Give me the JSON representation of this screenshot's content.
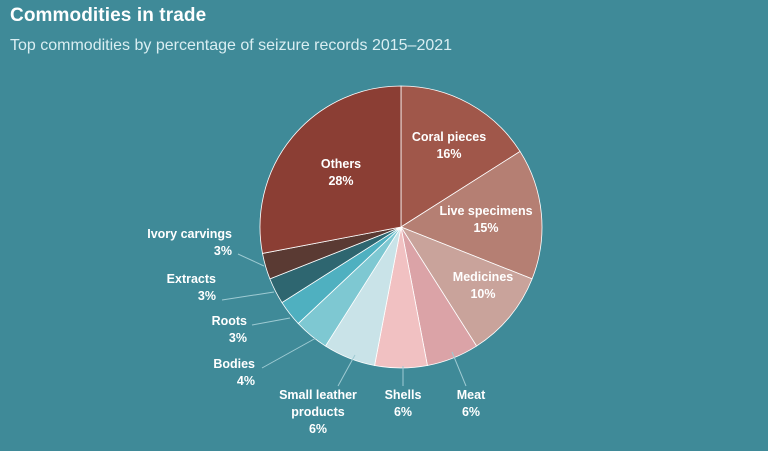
{
  "header": {
    "title": "Commodities in trade",
    "subtitle": "Top commodities by percentage of seizure records 2015–2021"
  },
  "chart_data": {
    "type": "pie",
    "title": "Commodities in trade",
    "subtitle": "Top commodities by percentage of seizure records 2015–2021",
    "unit": "%",
    "slices": [
      {
        "label": "Coral pieces",
        "value": 16,
        "display": "16%",
        "color": "#a0574a"
      },
      {
        "label": "Live specimens",
        "value": 15,
        "display": "15%",
        "color": "#b57f73"
      },
      {
        "label": "Medicines",
        "value": 10,
        "display": "10%",
        "color": "#c9a39b"
      },
      {
        "label": "Meat",
        "value": 6,
        "display": "6%",
        "color": "#dba3a7"
      },
      {
        "label": "Shells",
        "value": 6,
        "display": "6%",
        "color": "#f1c1c2"
      },
      {
        "label": "Small leather products",
        "value": 6,
        "display": "6%",
        "color": "#c9e3e8"
      },
      {
        "label": "Bodies",
        "value": 4,
        "display": "4%",
        "color": "#7ec8d2"
      },
      {
        "label": "Roots",
        "value": 3,
        "display": "3%",
        "color": "#4fb0c0"
      },
      {
        "label": "Extracts",
        "value": 3,
        "display": "3%",
        "color": "#2e6670"
      },
      {
        "label": "Ivory carvings",
        "value": 3,
        "display": "3%",
        "color": "#5a3a33"
      },
      {
        "label": "Others",
        "value": 28,
        "display": "28%",
        "color": "#8b3e34"
      }
    ]
  }
}
